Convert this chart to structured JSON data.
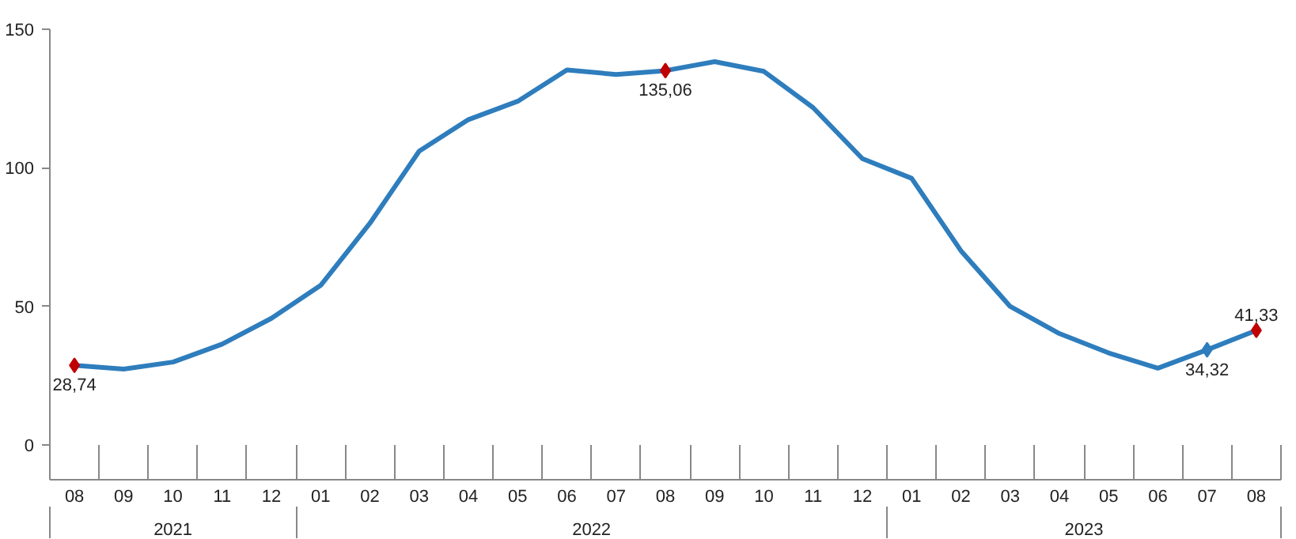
{
  "chart_data": {
    "type": "line",
    "categories": [
      "08",
      "09",
      "10",
      "11",
      "12",
      "01",
      "02",
      "03",
      "04",
      "05",
      "06",
      "07",
      "08",
      "09",
      "10",
      "11",
      "12",
      "01",
      "02",
      "03",
      "04",
      "05",
      "06",
      "07",
      "08"
    ],
    "series": [
      {
        "color": "#2e7dbd",
        "values": [
          28.74,
          27.4,
          29.9,
          36.4,
          45.7,
          57.6,
          80,
          106,
          117.4,
          124,
          135.3,
          133.7,
          135.06,
          138.3,
          134.8,
          121.7,
          103.3,
          96.2,
          70.1,
          50,
          40.2,
          33.2,
          27.7,
          34.32,
          41.33
        ],
        "colors": [
          "#c00000",
          null,
          null,
          null,
          null,
          null,
          null,
          null,
          null,
          null,
          null,
          null,
          "#c00000",
          null,
          null,
          null,
          null,
          null,
          null,
          null,
          null,
          null,
          null,
          "#2e7dbd",
          "#c00000"
        ],
        "value_labels": [
          "28,74",
          null,
          null,
          null,
          null,
          null,
          null,
          null,
          null,
          null,
          null,
          null,
          "135,06",
          null,
          null,
          null,
          null,
          null,
          null,
          null,
          null,
          null,
          null,
          "34,32",
          "41,33"
        ]
      }
    ],
    "annotations": [
      "2021",
      "2022",
      "2023"
    ],
    "ylim": [
      0,
      150
    ],
    "yticks": [
      0,
      50,
      100,
      150
    ],
    "grid": false,
    "line_style": "solid"
  }
}
